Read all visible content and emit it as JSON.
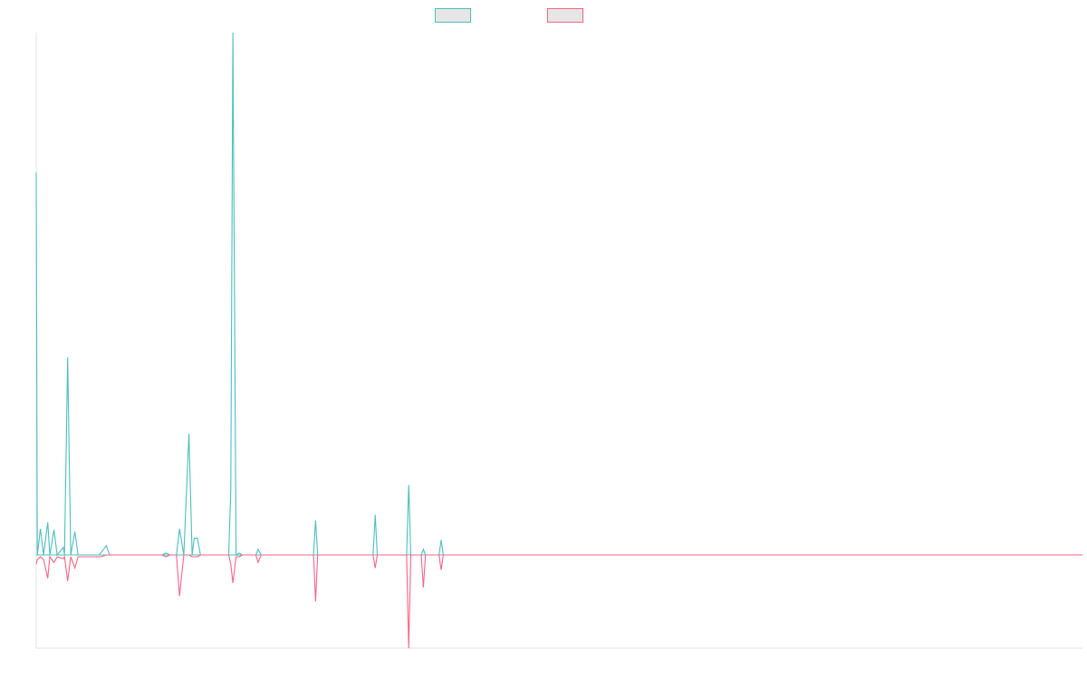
{
  "chart_data": {
    "type": "line",
    "title": "",
    "xlabel": "",
    "ylabel": "",
    "x_tick_labels": [],
    "y_tick_labels": [],
    "grid": false,
    "legend_position": "top-center",
    "baseline": 0,
    "ylim": [
      -100,
      560
    ],
    "xlim": [
      0,
      1000
    ],
    "series": [
      {
        "name": "",
        "color": "#4bc0c0",
        "points": [
          [
            0,
            410
          ],
          [
            1,
            0
          ],
          [
            4,
            28
          ],
          [
            7,
            0
          ],
          [
            11,
            35
          ],
          [
            13,
            0
          ],
          [
            17,
            27
          ],
          [
            20,
            0
          ],
          [
            26,
            8
          ],
          [
            27,
            0
          ],
          [
            30,
            212
          ],
          [
            33,
            0
          ],
          [
            37,
            25
          ],
          [
            40,
            0
          ],
          [
            60,
            0
          ],
          [
            67,
            10
          ],
          [
            70,
            0
          ],
          [
            120,
            0
          ],
          [
            124,
            2
          ],
          [
            128,
            0
          ],
          [
            134,
            0
          ],
          [
            137,
            28
          ],
          [
            141,
            0
          ],
          [
            146,
            130
          ],
          [
            149,
            0
          ],
          [
            151,
            18
          ],
          [
            154,
            18
          ],
          [
            157,
            0
          ],
          [
            184,
            0
          ],
          [
            186,
            70
          ],
          [
            188,
            560
          ],
          [
            191,
            0
          ],
          [
            194,
            2
          ],
          [
            197,
            0
          ],
          [
            210,
            0
          ],
          [
            212,
            6
          ],
          [
            215,
            0
          ],
          [
            265,
            0
          ],
          [
            267,
            37
          ],
          [
            269,
            0
          ],
          [
            322,
            0
          ],
          [
            324,
            43
          ],
          [
            326,
            0
          ],
          [
            354,
            0
          ],
          [
            356,
            75
          ],
          [
            358,
            0
          ],
          [
            368,
            0
          ],
          [
            370,
            6
          ],
          [
            372,
            0
          ],
          [
            385,
            0
          ],
          [
            387,
            16
          ],
          [
            389,
            0
          ],
          [
            1000,
            0
          ]
        ]
      },
      {
        "name": "",
        "color": "#ff6384",
        "points": [
          [
            0,
            -10
          ],
          [
            1,
            -5
          ],
          [
            4,
            -2
          ],
          [
            7,
            -5
          ],
          [
            11,
            -25
          ],
          [
            13,
            -2
          ],
          [
            17,
            -8
          ],
          [
            20,
            -2
          ],
          [
            26,
            -4
          ],
          [
            27,
            -2
          ],
          [
            30,
            -28
          ],
          [
            33,
            -2
          ],
          [
            37,
            -14
          ],
          [
            40,
            -2
          ],
          [
            60,
            -2
          ],
          [
            62,
            -2
          ],
          [
            67,
            0
          ],
          [
            70,
            0
          ],
          [
            120,
            0
          ],
          [
            124,
            -2
          ],
          [
            128,
            0
          ],
          [
            134,
            0
          ],
          [
            137,
            -44
          ],
          [
            141,
            0
          ],
          [
            146,
            0
          ],
          [
            149,
            -2
          ],
          [
            151,
            -2
          ],
          [
            154,
            -2
          ],
          [
            157,
            0
          ],
          [
            184,
            0
          ],
          [
            186,
            -10
          ],
          [
            188,
            -30
          ],
          [
            191,
            -2
          ],
          [
            194,
            -2
          ],
          [
            197,
            0
          ],
          [
            210,
            0
          ],
          [
            212,
            -8
          ],
          [
            215,
            0
          ],
          [
            265,
            0
          ],
          [
            267,
            -50
          ],
          [
            269,
            0
          ],
          [
            322,
            0
          ],
          [
            324,
            -14
          ],
          [
            326,
            0
          ],
          [
            354,
            0
          ],
          [
            356,
            -100
          ],
          [
            358,
            0
          ],
          [
            368,
            0
          ],
          [
            370,
            -35
          ],
          [
            372,
            0
          ],
          [
            385,
            0
          ],
          [
            387,
            -16
          ],
          [
            389,
            0
          ],
          [
            1000,
            0
          ]
        ]
      }
    ]
  }
}
